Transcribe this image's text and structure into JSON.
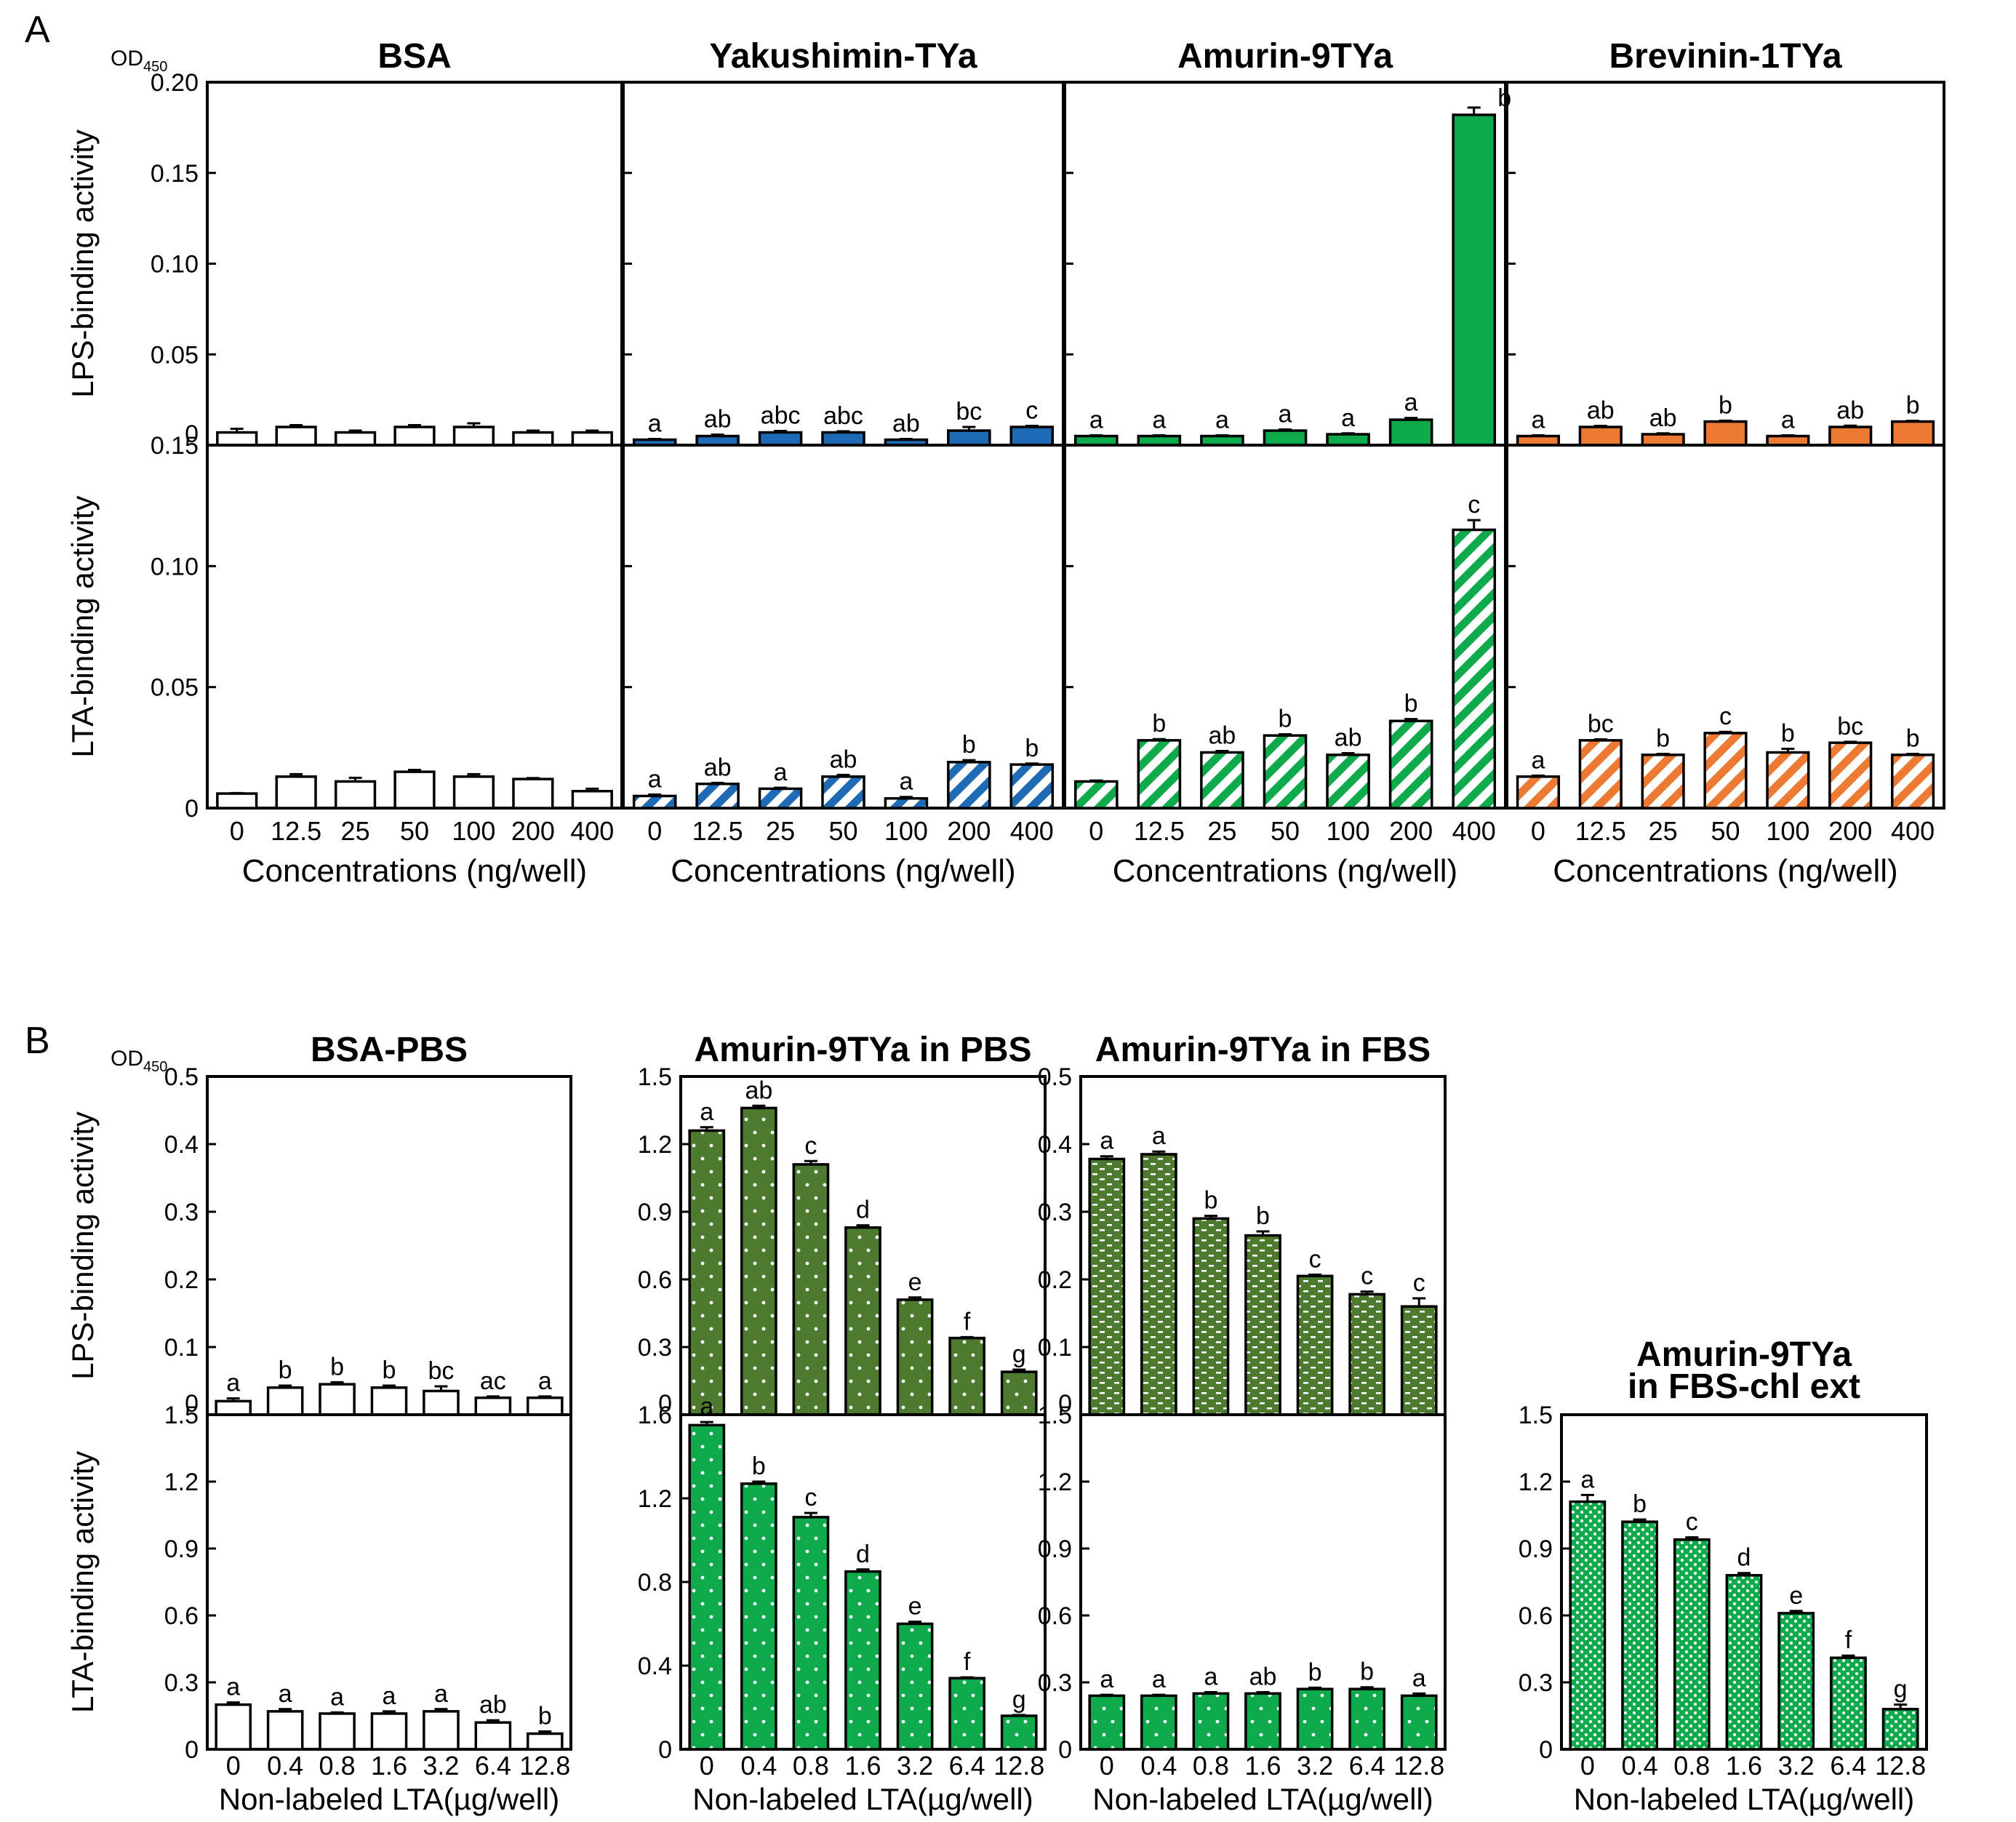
{
  "figure": {
    "panelA_letter": "A",
    "panelB_letter": "B",
    "od_label_main": "OD",
    "od_label_sub": "450",
    "colors": {
      "blue": "#1f6ab4",
      "green": "#0faa4c",
      "orange": "#ec7a33",
      "olive": "#4e7a30",
      "black": "#000000"
    }
  },
  "chart_data": [
    {
      "id": "A",
      "type": "bar",
      "categories": [
        "0",
        "12.5",
        "25",
        "50",
        "100",
        "200",
        "400"
      ],
      "xlabel": "Concentrations (ng/well)",
      "rows": [
        {
          "ylabel": "LPS-binding activity",
          "ylim": [
            0,
            0.2
          ],
          "ticks": [
            "0",
            "0.05",
            "0.10",
            "0.15",
            "0.20"
          ]
        },
        {
          "ylabel": "LTA-binding activity",
          "ylim": [
            0,
            0.15
          ],
          "ticks": [
            "0",
            "0.05",
            "0.10",
            "0.15"
          ]
        }
      ],
      "panels": [
        {
          "title": "BSA",
          "color": "#000000",
          "fill": "white",
          "series": [
            {
              "name": "LPS",
              "values": [
                0.007,
                0.01,
                0.007,
                0.01,
                0.01,
                0.007,
                0.007
              ],
              "errors": [
                0.002,
                0.001,
                0.001,
                0.001,
                0.002,
                0.001,
                0.001
              ],
              "labels": [
                "",
                "",
                "",
                "",
                "",
                "",
                ""
              ]
            },
            {
              "name": "LTA",
              "values": [
                0.006,
                0.013,
                0.011,
                0.015,
                0.013,
                0.012,
                0.007
              ],
              "errors": [
                0.0002,
                0.001,
                0.0015,
                0.0008,
                0.001,
                0.0004,
                0.001
              ],
              "labels": [
                "",
                "",
                "",
                "",
                "",
                "",
                ""
              ]
            }
          ]
        },
        {
          "title": "Yakushimin-TYa",
          "color": "#1f6ab4",
          "fill": "solid",
          "series": [
            {
              "name": "LPS",
              "values": [
                0.003,
                0.005,
                0.007,
                0.007,
                0.003,
                0.008,
                0.01
              ],
              "errors": [
                0.0004,
                0.0008,
                0.0008,
                0.0006,
                0.0004,
                0.002,
                0.0006
              ],
              "labels": [
                "a",
                "ab",
                "abc",
                "abc",
                "ab",
                "bc",
                "c"
              ]
            },
            {
              "name": "LTA",
              "values": [
                0.005,
                0.01,
                0.008,
                0.013,
                0.004,
                0.019,
                0.018
              ],
              "errors": [
                0.0006,
                0.0004,
                0.0004,
                0.0007,
                0.0006,
                0.0008,
                0.0004
              ],
              "labels": [
                "a",
                "ab",
                "a",
                "ab",
                "a",
                "b",
                "b"
              ],
              "pattern": "stripes"
            }
          ]
        },
        {
          "title": "Amurin-9TYa",
          "color": "#0faa4c",
          "fill": "solid",
          "series": [
            {
              "name": "LPS",
              "values": [
                0.005,
                0.005,
                0.005,
                0.008,
                0.006,
                0.014,
                0.182
              ],
              "errors": [
                0.0004,
                0.0004,
                0.0004,
                0.0006,
                0.0005,
                0.001,
                0.004
              ],
              "labels": [
                "a",
                "a",
                "a",
                "a",
                "a",
                "a",
                "b"
              ]
            },
            {
              "name": "LTA",
              "values": [
                0.011,
                0.028,
                0.023,
                0.03,
                0.022,
                0.036,
                0.115
              ],
              "errors": [
                0.0004,
                0.0005,
                0.0006,
                0.0005,
                0.0007,
                0.0008,
                0.004
              ],
              "labels": [
                "",
                "b",
                "ab",
                "b",
                "ab",
                "b",
                "c"
              ],
              "pattern": "stripes"
            }
          ]
        },
        {
          "title": "Brevinin-1TYa",
          "color": "#ec7a33",
          "fill": "solid",
          "series": [
            {
              "name": "LPS",
              "values": [
                0.005,
                0.01,
                0.006,
                0.013,
                0.005,
                0.01,
                0.013
              ],
              "errors": [
                0.0004,
                0.0006,
                0.0005,
                0.0005,
                0.0004,
                0.0007,
                0.0004
              ],
              "labels": [
                "a",
                "ab",
                "ab",
                "b",
                "a",
                "ab",
                "b"
              ]
            },
            {
              "name": "LTA",
              "values": [
                0.013,
                0.028,
                0.022,
                0.031,
                0.023,
                0.027,
                0.022
              ],
              "errors": [
                0.0004,
                0.0004,
                0.0004,
                0.0005,
                0.0015,
                0.0004,
                0.0004
              ],
              "labels": [
                "a",
                "bc",
                "b",
                "c",
                "b",
                "bc",
                "b"
              ],
              "pattern": "stripes"
            }
          ]
        }
      ]
    },
    {
      "id": "B",
      "type": "bar",
      "categories": [
        "0",
        "0.4",
        "0.8",
        "1.6",
        "3.2",
        "6.4",
        "12.8"
      ],
      "xlabel": "Non-labeled LTA(µg/well)",
      "ylabels": [
        "LPS-binding activity",
        "LTA-binding activity"
      ],
      "panels": [
        {
          "title": "BSA-PBS",
          "color": "#000000",
          "series": [
            {
              "name": "LPS",
              "ylim": [
                0,
                0.5
              ],
              "ticks": [
                "0",
                "0.1",
                "0.2",
                "0.3",
                "0.4",
                "0.5"
              ],
              "fill": "white",
              "values": [
                0.02,
                0.04,
                0.045,
                0.04,
                0.035,
                0.025,
                0.025
              ],
              "errors": [
                0.004,
                0.003,
                0.003,
                0.003,
                0.007,
                0.002,
                0.002
              ],
              "labels": [
                "a",
                "b",
                "b",
                "b",
                "bc",
                "ac",
                "a"
              ]
            },
            {
              "name": "LTA",
              "ylim": [
                0,
                1.5
              ],
              "ticks": [
                "0",
                "0.3",
                "0.6",
                "0.9",
                "1.2",
                "1.5"
              ],
              "fill": "white",
              "values": [
                0.2,
                0.17,
                0.16,
                0.16,
                0.17,
                0.12,
                0.07
              ],
              "errors": [
                0.01,
                0.01,
                0.005,
                0.01,
                0.01,
                0.01,
                0.01
              ],
              "labels": [
                "a",
                "a",
                "a",
                "a",
                "a",
                "ab",
                "b"
              ]
            }
          ]
        },
        {
          "title": "Amurin-9TYa in PBS",
          "color": "#0faa4c",
          "series": [
            {
              "name": "LPS",
              "ylim": [
                0,
                1.5
              ],
              "ticks": [
                "0",
                "0.3",
                "0.6",
                "0.9",
                "1.2",
                "1.5"
              ],
              "fill": "olive-dots",
              "values": [
                1.26,
                1.36,
                1.11,
                0.83,
                0.51,
                0.34,
                0.19
              ],
              "errors": [
                0.015,
                0.01,
                0.015,
                0.01,
                0.01,
                0.004,
                0.01
              ],
              "labels": [
                "a",
                "ab",
                "c",
                "d",
                "e",
                "f",
                "g"
              ]
            },
            {
              "name": "LTA",
              "ylim": [
                0,
                1.6
              ],
              "ticks": [
                "0",
                "0.4",
                "0.8",
                "1.2",
                "1.6"
              ],
              "fill": "green-dots",
              "values": [
                1.55,
                1.27,
                1.11,
                0.85,
                0.6,
                0.34,
                0.16
              ],
              "errors": [
                0.015,
                0.01,
                0.02,
                0.01,
                0.01,
                0.004,
                0.004
              ],
              "labels": [
                "a",
                "b",
                "c",
                "d",
                "e",
                "f",
                "g"
              ]
            }
          ]
        },
        {
          "title": "Amurin-9TYa in FBS",
          "color": "#0faa4c",
          "series": [
            {
              "name": "LPS",
              "ylim": [
                0,
                0.5
              ],
              "ticks": [
                "0",
                "0.1",
                "0.2",
                "0.3",
                "0.4",
                "0.5"
              ],
              "fill": "olive-dashes",
              "values": [
                0.378,
                0.385,
                0.29,
                0.265,
                0.205,
                0.178,
                0.16
              ],
              "errors": [
                0.004,
                0.004,
                0.004,
                0.006,
                0.002,
                0.004,
                0.012
              ],
              "labels": [
                "a",
                "a",
                "b",
                "b",
                "c",
                "c",
                "c"
              ]
            },
            {
              "name": "LTA",
              "ylim": [
                0,
                1.5
              ],
              "ticks": [
                "0",
                "0.3",
                "0.6",
                "0.9",
                "1.2",
                "1.5"
              ],
              "fill": "green-dots",
              "values": [
                0.24,
                0.24,
                0.25,
                0.25,
                0.27,
                0.27,
                0.24
              ],
              "errors": [
                0.004,
                0.004,
                0.006,
                0.006,
                0.006,
                0.008,
                0.01
              ],
              "labels": [
                "a",
                "a",
                "a",
                "ab",
                "b",
                "b",
                "a"
              ]
            }
          ]
        },
        {
          "title_line1": "Amurin-9TYa",
          "title_line2": "in FBS-chl ext",
          "color": "#0faa4c",
          "series": [
            {
              "name": "LTA",
              "ylim": [
                0,
                1.5
              ],
              "ticks": [
                "0",
                "0.3",
                "0.6",
                "0.9",
                "1.2",
                "1.5"
              ],
              "fill": "green-dense",
              "values": [
                1.11,
                1.02,
                0.94,
                0.78,
                0.61,
                0.41,
                0.18
              ],
              "errors": [
                0.03,
                0.01,
                0.01,
                0.01,
                0.01,
                0.01,
                0.02
              ],
              "labels": [
                "a",
                "b",
                "c",
                "d",
                "e",
                "f",
                "g"
              ]
            }
          ]
        }
      ]
    }
  ]
}
